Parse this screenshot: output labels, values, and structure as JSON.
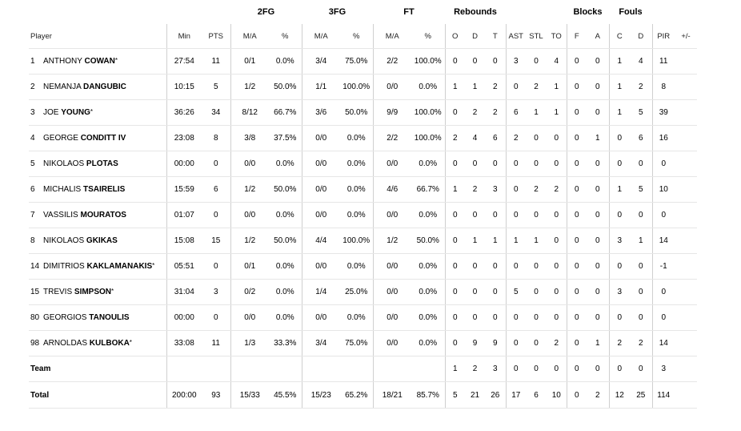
{
  "groups": {
    "fg2": "2FG",
    "fg3": "3FG",
    "ft": "FT",
    "reb": "Rebounds",
    "blk": "Blocks",
    "fouls": "Fouls"
  },
  "headers": {
    "player": "Player",
    "min": "Min",
    "pts": "PTS",
    "fg2_ma": "M/A",
    "fg2_pct": "%",
    "fg3_ma": "M/A",
    "fg3_pct": "%",
    "ft_ma": "M/A",
    "ft_pct": "%",
    "reb_o": "O",
    "reb_d": "D",
    "reb_t": "T",
    "ast": "AST",
    "stl": "STL",
    "to": "TO",
    "blk_f": "F",
    "blk_a": "A",
    "foul_c": "C",
    "foul_d": "D",
    "pir": "PIR",
    "pm": "+/-"
  },
  "rows": [
    {
      "num": "1",
      "first": "ANTHONY",
      "last": "COWAN",
      "star": "*",
      "min": "27:54",
      "pts": "11",
      "fg2": "0/1",
      "fg2p": "0.0%",
      "fg3": "3/4",
      "fg3p": "75.0%",
      "ft": "2/2",
      "ftp": "100.0%",
      "o": "0",
      "d": "0",
      "t": "0",
      "ast": "3",
      "stl": "0",
      "to": "4",
      "bf": "0",
      "ba": "0",
      "fc": "1",
      "fd": "4",
      "pir": "11",
      "pm": ""
    },
    {
      "num": "2",
      "first": "NEMANJA",
      "last": "DANGUBIC",
      "star": "",
      "min": "10:15",
      "pts": "5",
      "fg2": "1/2",
      "fg2p": "50.0%",
      "fg3": "1/1",
      "fg3p": "100.0%",
      "ft": "0/0",
      "ftp": "0.0%",
      "o": "1",
      "d": "1",
      "t": "2",
      "ast": "0",
      "stl": "2",
      "to": "1",
      "bf": "0",
      "ba": "0",
      "fc": "1",
      "fd": "2",
      "pir": "8",
      "pm": ""
    },
    {
      "num": "3",
      "first": "JOE",
      "last": "YOUNG",
      "star": "*",
      "min": "36:26",
      "pts": "34",
      "fg2": "8/12",
      "fg2p": "66.7%",
      "fg3": "3/6",
      "fg3p": "50.0%",
      "ft": "9/9",
      "ftp": "100.0%",
      "o": "0",
      "d": "2",
      "t": "2",
      "ast": "6",
      "stl": "1",
      "to": "1",
      "bf": "0",
      "ba": "0",
      "fc": "1",
      "fd": "5",
      "pir": "39",
      "pm": ""
    },
    {
      "num": "4",
      "first": "GEORGE",
      "last": "CONDITT IV",
      "star": "",
      "min": "23:08",
      "pts": "8",
      "fg2": "3/8",
      "fg2p": "37.5%",
      "fg3": "0/0",
      "fg3p": "0.0%",
      "ft": "2/2",
      "ftp": "100.0%",
      "o": "2",
      "d": "4",
      "t": "6",
      "ast": "2",
      "stl": "0",
      "to": "0",
      "bf": "0",
      "ba": "1",
      "fc": "0",
      "fd": "6",
      "pir": "16",
      "pm": ""
    },
    {
      "num": "5",
      "first": "NIKOLAOS",
      "last": "PLOTAS",
      "star": "",
      "min": "00:00",
      "pts": "0",
      "fg2": "0/0",
      "fg2p": "0.0%",
      "fg3": "0/0",
      "fg3p": "0.0%",
      "ft": "0/0",
      "ftp": "0.0%",
      "o": "0",
      "d": "0",
      "t": "0",
      "ast": "0",
      "stl": "0",
      "to": "0",
      "bf": "0",
      "ba": "0",
      "fc": "0",
      "fd": "0",
      "pir": "0",
      "pm": ""
    },
    {
      "num": "6",
      "first": "MICHALIS",
      "last": "TSAIRELIS",
      "star": "",
      "min": "15:59",
      "pts": "6",
      "fg2": "1/2",
      "fg2p": "50.0%",
      "fg3": "0/0",
      "fg3p": "0.0%",
      "ft": "4/6",
      "ftp": "66.7%",
      "o": "1",
      "d": "2",
      "t": "3",
      "ast": "0",
      "stl": "2",
      "to": "2",
      "bf": "0",
      "ba": "0",
      "fc": "1",
      "fd": "5",
      "pir": "10",
      "pm": ""
    },
    {
      "num": "7",
      "first": "VASSILIS",
      "last": "MOURATOS",
      "star": "",
      "min": "01:07",
      "pts": "0",
      "fg2": "0/0",
      "fg2p": "0.0%",
      "fg3": "0/0",
      "fg3p": "0.0%",
      "ft": "0/0",
      "ftp": "0.0%",
      "o": "0",
      "d": "0",
      "t": "0",
      "ast": "0",
      "stl": "0",
      "to": "0",
      "bf": "0",
      "ba": "0",
      "fc": "0",
      "fd": "0",
      "pir": "0",
      "pm": ""
    },
    {
      "num": "8",
      "first": "NIKOLAOS",
      "last": "GKIKAS",
      "star": "",
      "min": "15:08",
      "pts": "15",
      "fg2": "1/2",
      "fg2p": "50.0%",
      "fg3": "4/4",
      "fg3p": "100.0%",
      "ft": "1/2",
      "ftp": "50.0%",
      "o": "0",
      "d": "1",
      "t": "1",
      "ast": "1",
      "stl": "1",
      "to": "0",
      "bf": "0",
      "ba": "0",
      "fc": "3",
      "fd": "1",
      "pir": "14",
      "pm": ""
    },
    {
      "num": "14",
      "first": "DIMITRIOS",
      "last": "KAKLAMANAKIS",
      "star": "*",
      "min": "05:51",
      "pts": "0",
      "fg2": "0/1",
      "fg2p": "0.0%",
      "fg3": "0/0",
      "fg3p": "0.0%",
      "ft": "0/0",
      "ftp": "0.0%",
      "o": "0",
      "d": "0",
      "t": "0",
      "ast": "0",
      "stl": "0",
      "to": "0",
      "bf": "0",
      "ba": "0",
      "fc": "0",
      "fd": "0",
      "pir": "-1",
      "pm": ""
    },
    {
      "num": "15",
      "first": "TREVIS",
      "last": "SIMPSON",
      "star": "*",
      "min": "31:04",
      "pts": "3",
      "fg2": "0/2",
      "fg2p": "0.0%",
      "fg3": "1/4",
      "fg3p": "25.0%",
      "ft": "0/0",
      "ftp": "0.0%",
      "o": "0",
      "d": "0",
      "t": "0",
      "ast": "5",
      "stl": "0",
      "to": "0",
      "bf": "0",
      "ba": "0",
      "fc": "3",
      "fd": "0",
      "pir": "0",
      "pm": ""
    },
    {
      "num": "80",
      "first": "GEORGIOS",
      "last": "TANOULIS",
      "star": "",
      "min": "00:00",
      "pts": "0",
      "fg2": "0/0",
      "fg2p": "0.0%",
      "fg3": "0/0",
      "fg3p": "0.0%",
      "ft": "0/0",
      "ftp": "0.0%",
      "o": "0",
      "d": "0",
      "t": "0",
      "ast": "0",
      "stl": "0",
      "to": "0",
      "bf": "0",
      "ba": "0",
      "fc": "0",
      "fd": "0",
      "pir": "0",
      "pm": ""
    },
    {
      "num": "98",
      "first": "ARNOLDAS",
      "last": "KULBOKA",
      "star": "*",
      "min": "33:08",
      "pts": "11",
      "fg2": "1/3",
      "fg2p": "33.3%",
      "fg3": "3/4",
      "fg3p": "75.0%",
      "ft": "0/0",
      "ftp": "0.0%",
      "o": "0",
      "d": "9",
      "t": "9",
      "ast": "0",
      "stl": "0",
      "to": "2",
      "bf": "0",
      "ba": "1",
      "fc": "2",
      "fd": "2",
      "pir": "14",
      "pm": ""
    }
  ],
  "team": {
    "label": "Team",
    "o": "1",
    "d": "2",
    "t": "3",
    "ast": "0",
    "stl": "0",
    "to": "0",
    "bf": "0",
    "ba": "0",
    "fc": "0",
    "fd": "0",
    "pir": "3"
  },
  "total": {
    "label": "Total",
    "min": "200:00",
    "pts": "93",
    "fg2": "15/33",
    "fg2p": "45.5%",
    "fg3": "15/23",
    "fg3p": "65.2%",
    "ft": "18/21",
    "ftp": "85.7%",
    "o": "5",
    "d": "21",
    "t": "26",
    "ast": "17",
    "stl": "6",
    "to": "10",
    "bf": "0",
    "ba": "2",
    "fc": "12",
    "fd": "25",
    "pir": "114",
    "pm": ""
  }
}
